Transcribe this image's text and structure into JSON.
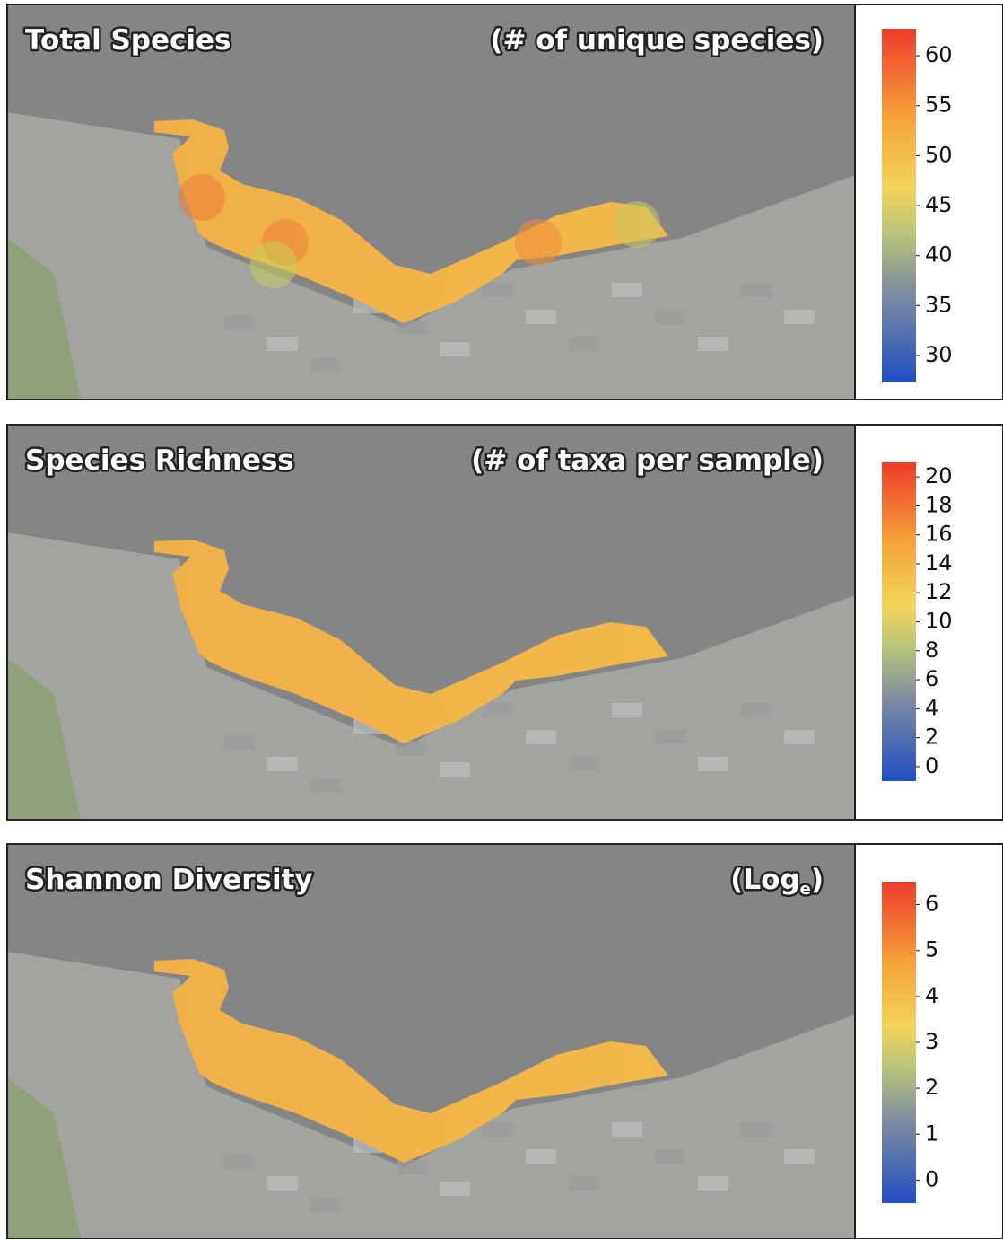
{
  "panels": [
    {
      "title": "Total Species",
      "unit": [
        "(# of unique species)"
      ],
      "colorbar": {
        "range": [
          27.3,
          62.7
        ],
        "ticks": [
          60,
          55,
          50,
          45,
          40,
          35,
          30
        ]
      }
    },
    {
      "title": "Species Richness",
      "unit": [
        "(# of taxa per sample)"
      ],
      "colorbar": {
        "range": [
          -1,
          21
        ],
        "ticks": [
          20,
          18,
          16,
          14,
          12,
          10,
          8,
          6,
          4,
          2,
          0
        ]
      }
    },
    {
      "title": "Shannon Diversity",
      "unit": [
        "(Log",
        "e",
        ")"
      ],
      "colorbar": {
        "range": [
          -0.5,
          6.5
        ],
        "ticks": [
          6,
          5,
          4,
          3,
          2,
          1,
          0
        ]
      }
    }
  ]
}
